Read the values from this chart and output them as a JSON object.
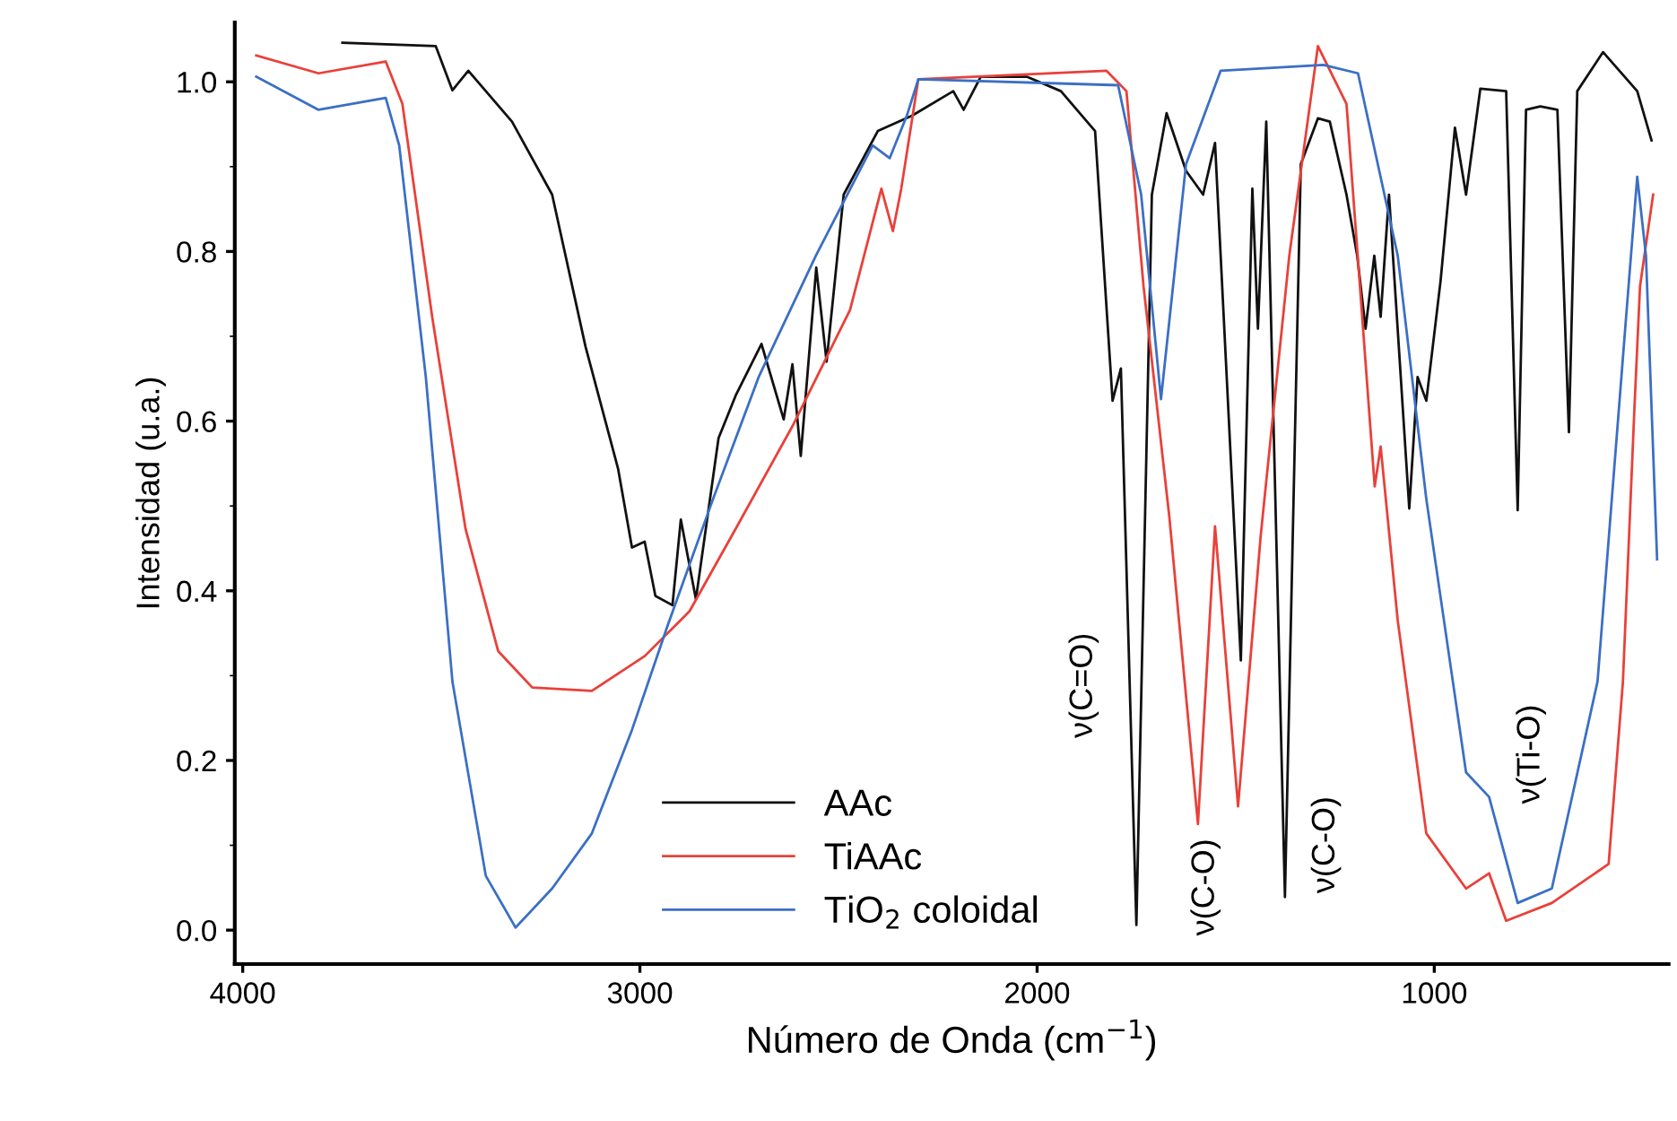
{
  "chart_data": {
    "type": "line",
    "xlabel": "Número de Onda (cm$^{−1}$)",
    "ylabel": "Intensidad (u.a.)",
    "xlim": [
      4020,
      410
    ],
    "ylim": [
      -0.04,
      1.07
    ],
    "xticks": [
      4000,
      3000,
      2000,
      1000
    ],
    "yticks": [
      {
        "value": 0,
        "label": "0.0"
      },
      {
        "value": 0.2,
        "label": "0.2"
      },
      {
        "value": 0.4,
        "label": "0.4"
      },
      {
        "value": 0.6,
        "label": "0.6"
      },
      {
        "value": 0.8,
        "label": "0.8"
      },
      {
        "value": 1,
        "label": "1.0"
      }
    ],
    "grid": false,
    "legend": "bottom",
    "marker": "none",
    "line_style": "solid",
    "series": [
      {
        "name": "AAc",
        "color": "#111111",
        "x": [
          3749,
          3514,
          3472,
          3432,
          3322,
          3221,
          3137,
          3055,
          3020,
          2988,
          2961,
          2918,
          2897,
          2859,
          2802,
          2759,
          2694,
          2638,
          2616,
          2595,
          2556,
          2530,
          2487,
          2401,
          2315,
          2211,
          2185,
          2142,
          2026,
          1940,
          1854,
          1810,
          1789,
          1750,
          1711,
          1674,
          1625,
          1582,
          1552,
          1487,
          1458,
          1444,
          1423,
          1376,
          1336,
          1293,
          1263,
          1221,
          1194,
          1173,
          1151,
          1135,
          1114,
          1063,
          1042,
          1020,
          984,
          948,
          920,
          884,
          819,
          790,
          769,
          733,
          690,
          661,
          640,
          575,
          489,
          453
        ],
        "values": [
          1.046,
          1.042,
          0.99,
          1.013,
          0.953,
          0.867,
          0.688,
          0.544,
          0.451,
          0.458,
          0.394,
          0.383,
          0.484,
          0.39,
          0.58,
          0.63,
          0.691,
          0.602,
          0.667,
          0.559,
          0.781,
          0.67,
          0.867,
          0.942,
          0.96,
          0.989,
          0.967,
          1.006,
          1.006,
          0.989,
          0.942,
          0.624,
          0.662,
          0.006,
          0.867,
          0.963,
          0.895,
          0.867,
          0.928,
          0.318,
          0.874,
          0.709,
          0.953,
          0.039,
          0.903,
          0.957,
          0.953,
          0.867,
          0.795,
          0.709,
          0.795,
          0.723,
          0.867,
          0.497,
          0.652,
          0.624,
          0.766,
          0.946,
          0.867,
          0.992,
          0.989,
          0.495,
          0.967,
          0.971,
          0.967,
          0.587,
          0.989,
          1.035,
          0.989,
          0.931
        ]
      },
      {
        "name": "TiAAc",
        "color": "#e8413a",
        "x": [
          3966,
          3809,
          3640,
          3598,
          3523,
          3439,
          3357,
          3271,
          3121,
          2988,
          2875,
          2759,
          2616,
          2471,
          2392,
          2363,
          2342,
          2299,
          1825,
          1775,
          1732,
          1667,
          1595,
          1552,
          1494,
          1437,
          1365,
          1293,
          1221,
          1150,
          1135,
          1092,
          1020,
          920,
          862,
          819,
          704,
          561,
          525,
          496,
          482,
          449
        ],
        "values": [
          1.031,
          1.01,
          1.024,
          0.974,
          0.723,
          0.473,
          0.329,
          0.286,
          0.282,
          0.323,
          0.376,
          0.473,
          0.594,
          0.731,
          0.874,
          0.824,
          0.874,
          1.003,
          1.013,
          0.989,
          0.759,
          0.487,
          0.125,
          0.476,
          0.146,
          0.465,
          0.795,
          1.042,
          0.974,
          0.523,
          0.57,
          0.365,
          0.114,
          0.049,
          0.067,
          0.011,
          0.032,
          0.078,
          0.293,
          0.616,
          0.759,
          0.867
        ]
      },
      {
        "name": "TiO$_{2}$ coloidal",
        "color": "#3b6fc4",
        "x": [
          3966,
          3809,
          3640,
          3606,
          3539,
          3472,
          3388,
          3313,
          3221,
          3121,
          3020,
          2931,
          2816,
          2701,
          2557,
          2414,
          2371,
          2328,
          2299,
          1796,
          1738,
          1688,
          1625,
          1538,
          1279,
          1192,
          1092,
          1020,
          920,
          862,
          790,
          704,
          589,
          517,
          489,
          467,
          439
        ],
        "values": [
          1.006,
          0.967,
          0.981,
          0.925,
          0.652,
          0.293,
          0.064,
          0.003,
          0.049,
          0.114,
          0.236,
          0.358,
          0.508,
          0.652,
          0.795,
          0.925,
          0.91,
          0.96,
          1.003,
          0.996,
          0.867,
          0.626,
          0.903,
          1.013,
          1.02,
          1.01,
          0.795,
          0.508,
          0.186,
          0.157,
          0.032,
          0.049,
          0.293,
          0.723,
          0.888,
          0.795,
          0.437
        ]
      }
    ],
    "annotations": [
      "ν(C=O)",
      "ν(C-O)",
      "ν(C-O)",
      "ν(Ti-O)"
    ]
  }
}
